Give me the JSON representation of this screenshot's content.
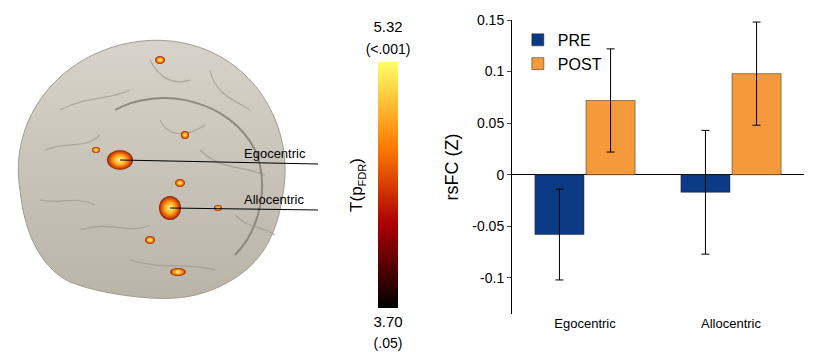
{
  "chart_data": {
    "type": "bar",
    "categories": [
      "Egocentric",
      "Allocentric"
    ],
    "series": [
      {
        "name": "PRE",
        "color": "#0d3a84",
        "values": [
          -0.058,
          -0.017
        ],
        "errors": [
          0.044,
          0.06
        ]
      },
      {
        "name": "POST",
        "color": "#f59a3a",
        "values": [
          0.072,
          0.098
        ],
        "errors": [
          0.05,
          0.05
        ]
      }
    ],
    "y_label": "rsFC (Z)",
    "ylim": [
      -0.135,
      0.15
    ],
    "yticks": [
      -0.1,
      -0.05,
      0,
      0.05,
      0.1,
      0.15
    ],
    "grid": false,
    "legend": "upper left"
  },
  "brain_map": {
    "labels": [
      "Egocentric",
      "Allocentric"
    ],
    "colorbar": {
      "title": "T(p",
      "title_subscript": "FDR",
      "title_end": ")",
      "range": [
        3.7,
        5.32
      ],
      "ticks": [
        {
          "value": 5.32,
          "label": "5.32",
          "p_label": "(<.001)"
        },
        {
          "value": 3.7,
          "label": "3.70",
          "p_label": "(.05)"
        }
      ]
    }
  }
}
